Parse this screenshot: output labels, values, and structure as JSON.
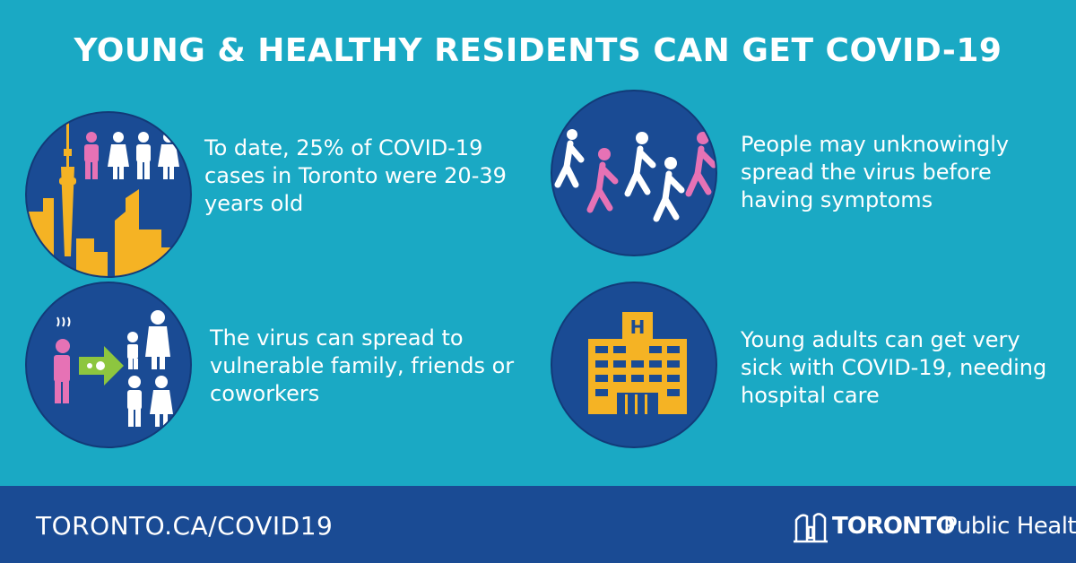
{
  "title": "YOUNG & HEALTHY RESIDENTS CAN GET COVID-19",
  "cards": [
    {
      "text": "To date, 25% of COVID-19 cases in Toronto were 20-39 years old",
      "icon": "city-skyline-people-icon"
    },
    {
      "text": "People may unknowingly spread the virus before having symptoms",
      "icon": "walking-people-icon"
    },
    {
      "text": "The virus can spread to vulnerable family, friends or coworkers",
      "icon": "virus-spread-family-icon"
    },
    {
      "text": "Young adults can get very sick with COVID-19, needing hospital care",
      "icon": "hospital-icon"
    }
  ],
  "hospital_sign": "H",
  "footer": {
    "url": "TORONTO.CA/COVID19",
    "logo_org": "TORONTO",
    "logo_dept": "Public Health"
  },
  "colors": {
    "background": "#1aa9c4",
    "navy": "#1a4b94",
    "accent_yellow": "#f5b324",
    "accent_pink": "#e672b5",
    "accent_green": "#8dc63f"
  }
}
